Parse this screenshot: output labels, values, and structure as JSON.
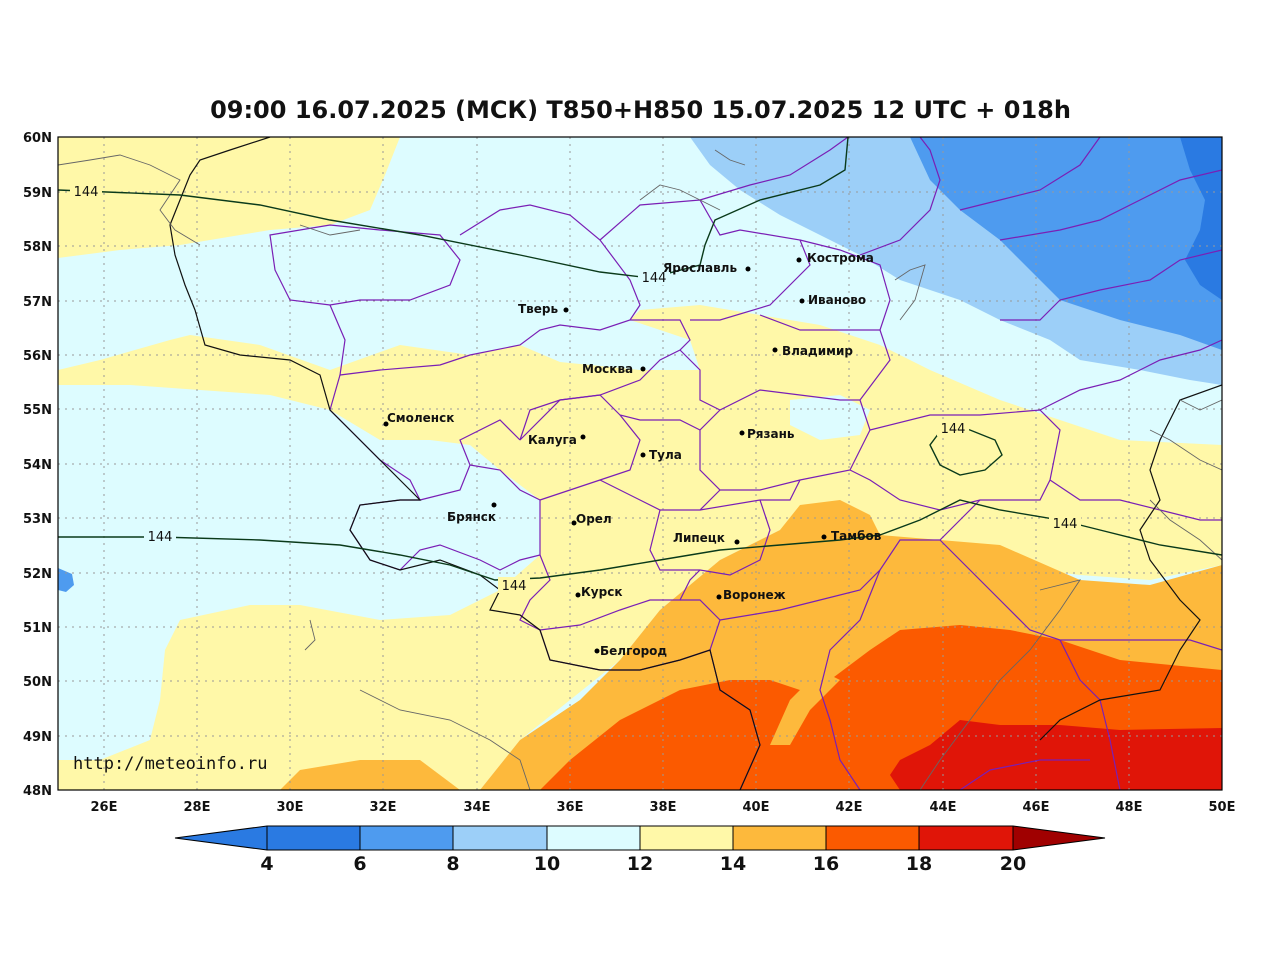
{
  "title": "09:00 16.07.2025 (МСК) T850+H850 15.07.2025 12 UTC + 018h",
  "watermark": "http://meteoinfo.ru",
  "latitude_labels": [
    "60N",
    "59N",
    "58N",
    "57N",
    "56N",
    "55N",
    "54N",
    "53N",
    "52N",
    "51N",
    "50N",
    "49N",
    "48N"
  ],
  "longitude_labels": [
    "26E",
    "28E",
    "30E",
    "32E",
    "34E",
    "36E",
    "38E",
    "40E",
    "42E",
    "44E",
    "46E",
    "48E",
    "50E"
  ],
  "colorbar": {
    "ticks": [
      "4",
      "6",
      "8",
      "10",
      "12",
      "14",
      "16",
      "18",
      "20"
    ],
    "colors": [
      "#2a7ae2",
      "#2a7ae2",
      "#4e9bef",
      "#9ccff8",
      "#ddfcff",
      "#fff8a8",
      "#fdb93c",
      "#fb5a00",
      "#e01508",
      "#a00000"
    ]
  },
  "contour_labels": [
    "144",
    "144",
    "144",
    "144",
    "144",
    "144"
  ],
  "cities": [
    {
      "name": "Кострома"
    },
    {
      "name": "Ярославль"
    },
    {
      "name": "Иваново"
    },
    {
      "name": "Тверь"
    },
    {
      "name": "Владимир"
    },
    {
      "name": "Москва"
    },
    {
      "name": "Смоленск"
    },
    {
      "name": "Калуга"
    },
    {
      "name": "Рязань"
    },
    {
      "name": "Тула"
    },
    {
      "name": "Брянск"
    },
    {
      "name": "Орел"
    },
    {
      "name": "Тамбов"
    },
    {
      "name": "Липецк"
    },
    {
      "name": "Курск"
    },
    {
      "name": "Воронеж"
    },
    {
      "name": "Белгород"
    }
  ]
}
